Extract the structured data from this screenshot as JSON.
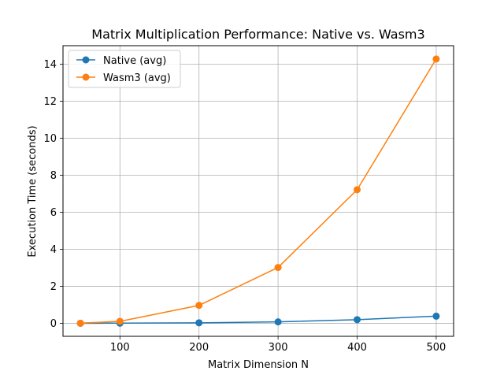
{
  "chart_data": {
    "type": "line",
    "title": "Matrix Multiplication Performance: Native vs. Wasm3",
    "xlabel": "Matrix Dimension N",
    "ylabel": "Execution Time (seconds)",
    "xlim": [
      28,
      522
    ],
    "ylim": [
      -0.7,
      15.0
    ],
    "grid": true,
    "legend_position": "upper-left",
    "x_ticks": [
      100,
      200,
      300,
      400,
      500
    ],
    "y_ticks": [
      0,
      2,
      4,
      6,
      8,
      10,
      12,
      14
    ],
    "series": [
      {
        "name": "Native (avg)",
        "color": "#1f77b4",
        "x": [
          50,
          100,
          200,
          300,
          400,
          500
        ],
        "values": [
          0.003,
          0.01,
          0.03,
          0.08,
          0.2,
          0.39
        ]
      },
      {
        "name": "Wasm3 (avg)",
        "color": "#ff7f0e",
        "x": [
          50,
          100,
          200,
          300,
          400,
          500
        ],
        "values": [
          0.01,
          0.11,
          0.97,
          3.02,
          7.22,
          14.28
        ]
      }
    ]
  }
}
